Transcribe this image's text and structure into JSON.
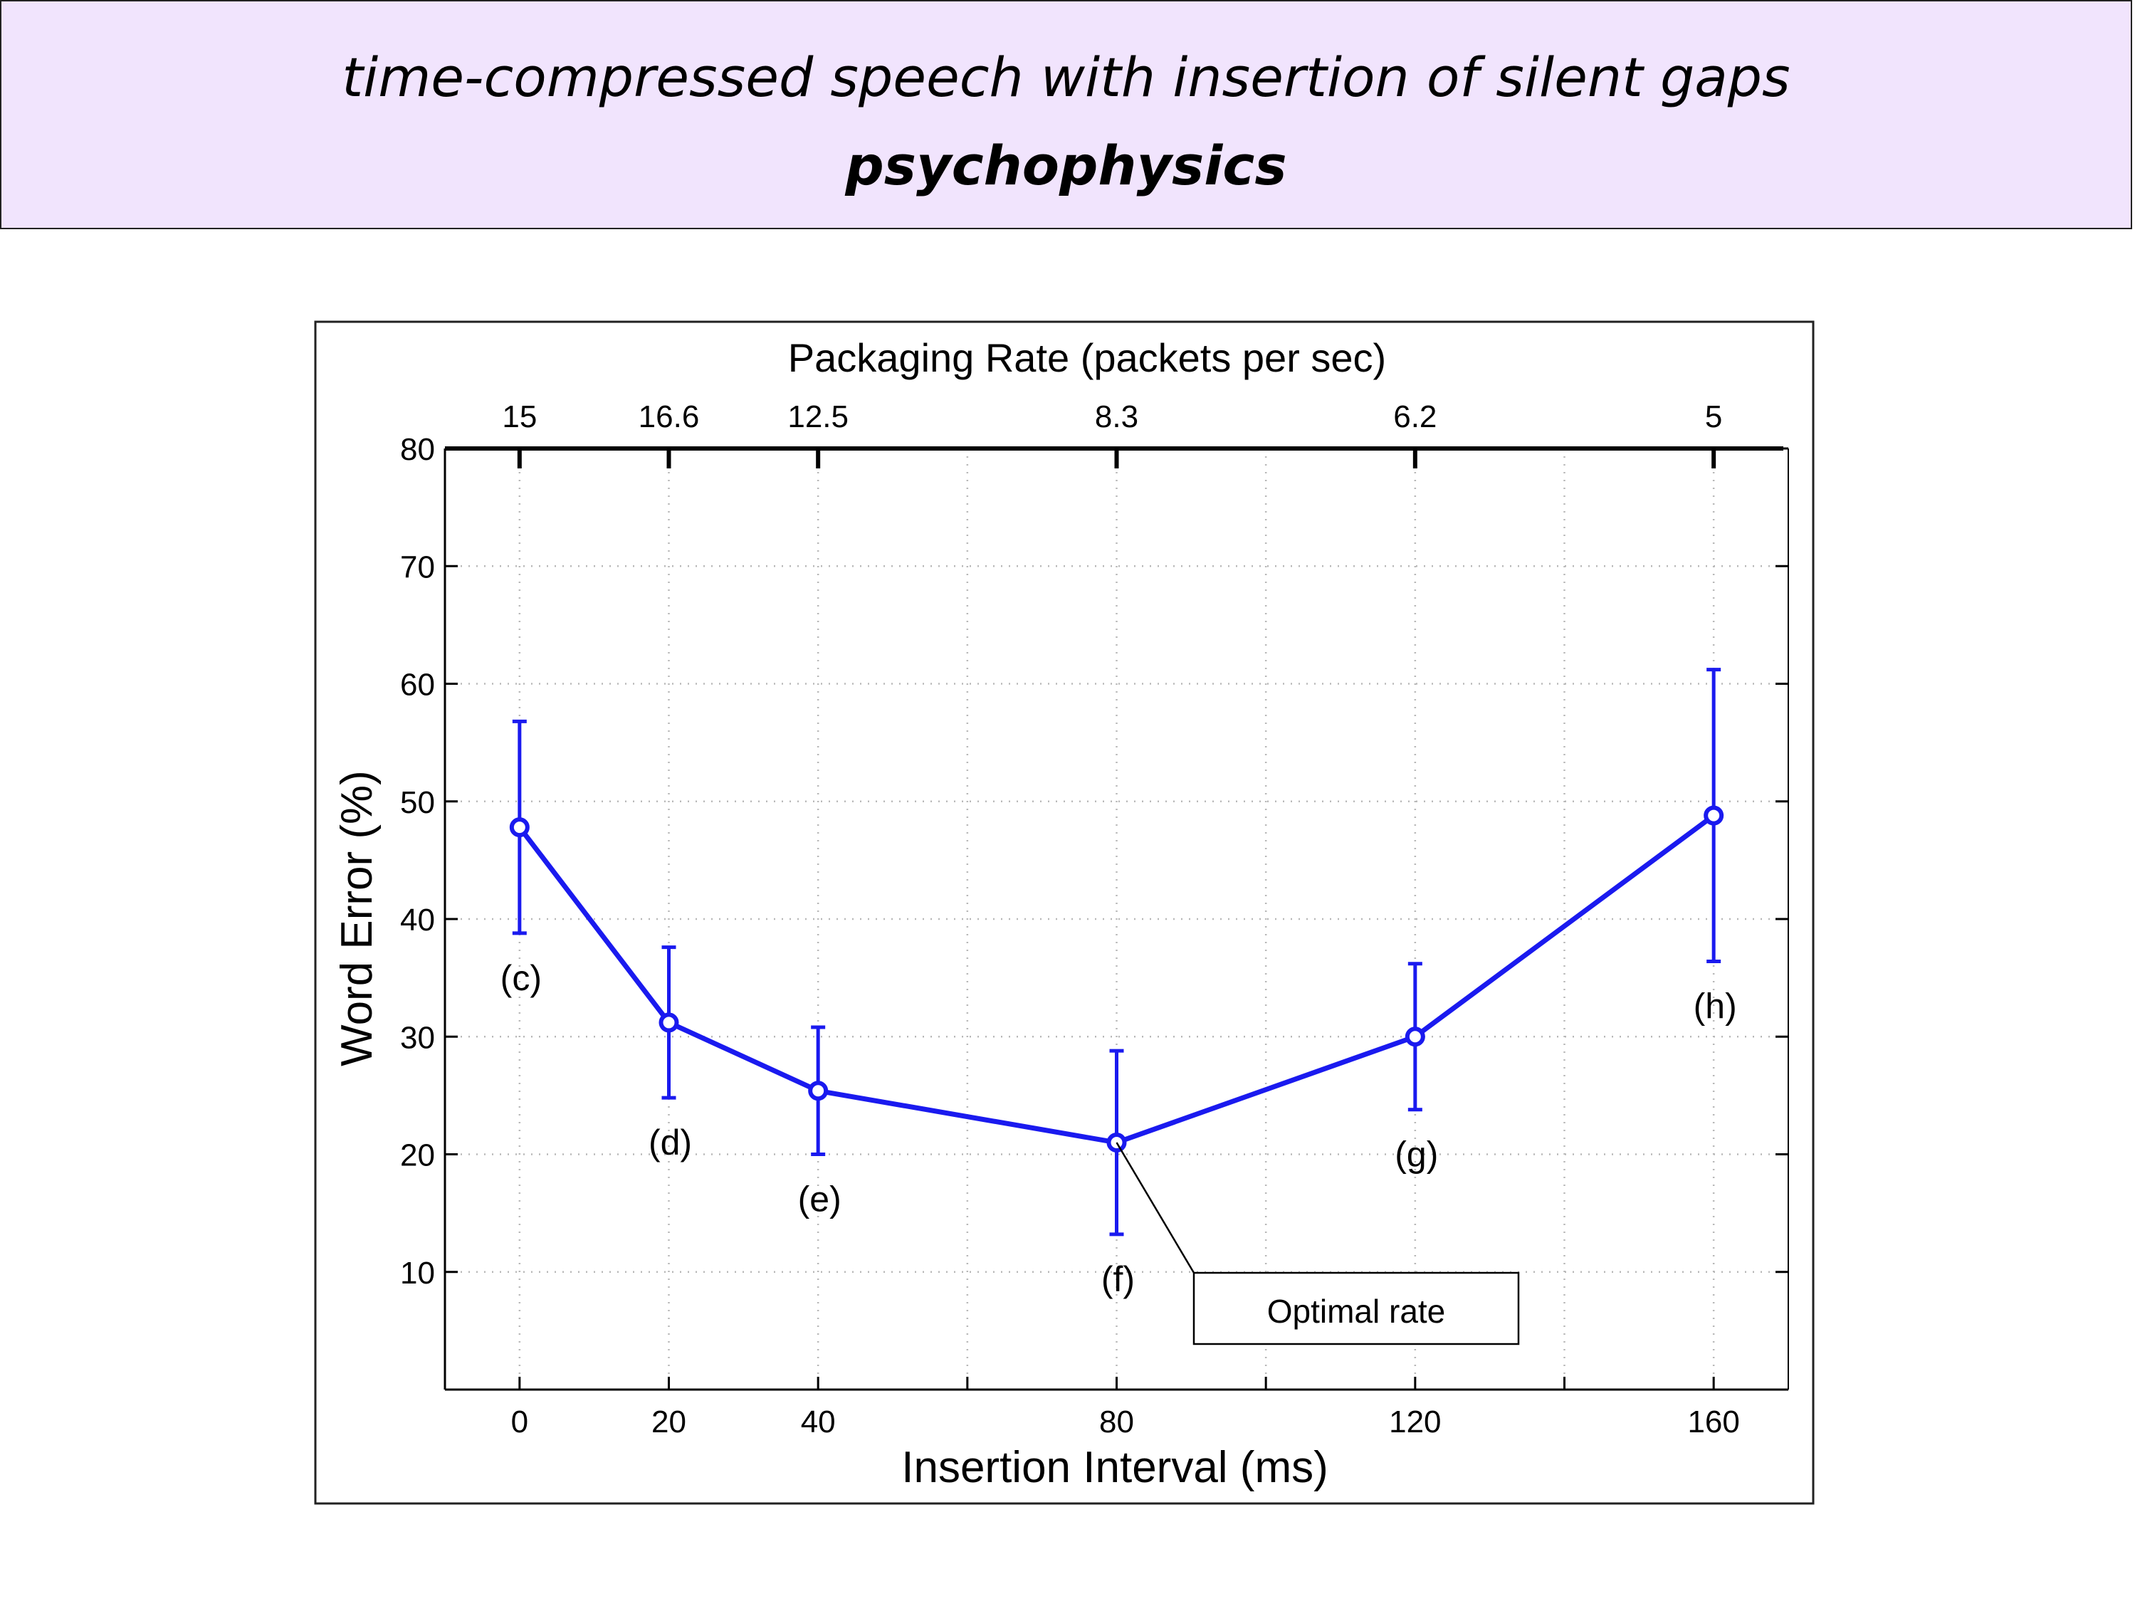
{
  "banner": {
    "line1": "time-compressed speech with insertion of silent gaps",
    "line2": "psychophysics"
  },
  "chart_data": {
    "type": "line",
    "xlabel": "Insertion Interval (ms)",
    "ylabel": "Word Error (%)",
    "top_axis_label": "Packaging Rate (packets per sec)",
    "xlim": [
      -10,
      170
    ],
    "ylim": [
      0,
      80
    ],
    "x_ticks": [
      0,
      20,
      40,
      80,
      120,
      160
    ],
    "x_minor_gridlines": [
      60,
      100,
      140
    ],
    "y_ticks": [
      10,
      20,
      30,
      40,
      50,
      60,
      70,
      80
    ],
    "top_ticks": [
      {
        "x": 0,
        "label": "15"
      },
      {
        "x": 20,
        "label": "16.6"
      },
      {
        "x": 40,
        "label": "12.5"
      },
      {
        "x": 80,
        "label": "8.3"
      },
      {
        "x": 120,
        "label": "6.2"
      },
      {
        "x": 160,
        "label": "5"
      }
    ],
    "grid": true,
    "color": "#1a1aef",
    "points": [
      {
        "x": 0,
        "y": 47.8,
        "err_low": 38.8,
        "err_high": 56.8,
        "label": "(c)"
      },
      {
        "x": 20,
        "y": 31.2,
        "err_low": 24.8,
        "err_high": 37.6,
        "label": "(d)"
      },
      {
        "x": 40,
        "y": 25.4,
        "err_low": 20.0,
        "err_high": 30.8,
        "label": "(e)"
      },
      {
        "x": 80,
        "y": 21.0,
        "err_low": 13.2,
        "err_high": 28.8,
        "label": "(f)"
      },
      {
        "x": 120,
        "y": 30.0,
        "err_low": 23.8,
        "err_high": 36.2,
        "label": "(g)"
      },
      {
        "x": 160,
        "y": 48.8,
        "err_low": 36.4,
        "err_high": 61.2,
        "label": "(h)"
      }
    ],
    "annotation": {
      "text": "Optimal rate",
      "points_to_x": 80,
      "points_to_y": 21.0
    }
  }
}
